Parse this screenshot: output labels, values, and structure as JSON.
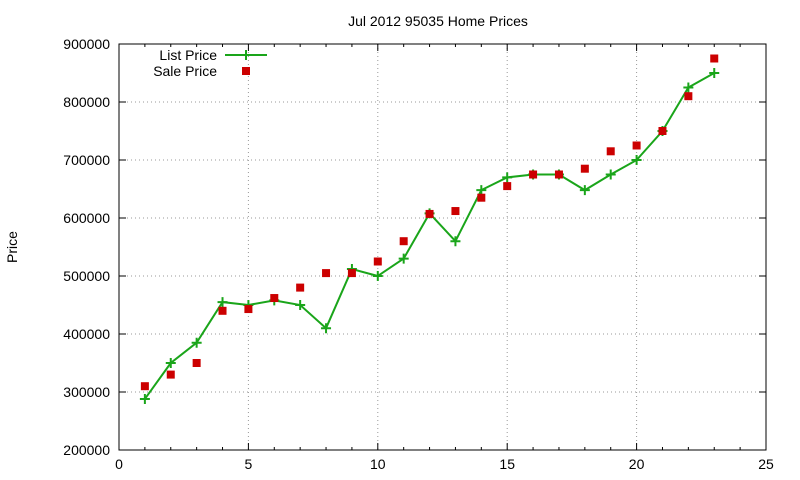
{
  "chart_data": {
    "type": "line",
    "title": "Jul 2012 95035 Home Prices",
    "xlabel": "",
    "ylabel": "Price",
    "xlim": [
      0,
      25
    ],
    "ylim": [
      200000,
      900000
    ],
    "x_ticks": [
      "0",
      "5",
      "10",
      "15",
      "20",
      "25"
    ],
    "y_ticks": [
      "200000",
      "300000",
      "400000",
      "500000",
      "600000",
      "700000",
      "800000",
      "900000"
    ],
    "grid": true,
    "legend_position": "top-left",
    "x": [
      1,
      2,
      3,
      4,
      5,
      6,
      7,
      8,
      9,
      10,
      11,
      12,
      13,
      14,
      15,
      16,
      17,
      18,
      19,
      20,
      21,
      22,
      23
    ],
    "series": [
      {
        "name": "List Price",
        "style": "line-plus",
        "color": "#1aa51a",
        "values": [
          288000,
          350000,
          385000,
          455000,
          450000,
          458000,
          450000,
          410000,
          512000,
          500000,
          530000,
          608000,
          560000,
          648000,
          670000,
          675000,
          675000,
          648000,
          675000,
          700000,
          750000,
          825000,
          850000
        ]
      },
      {
        "name": "Sale Price",
        "style": "square",
        "color": "#cc0000",
        "values": [
          310000,
          330000,
          350000,
          440000,
          443000,
          462000,
          480000,
          505000,
          505000,
          525000,
          560000,
          607000,
          612000,
          635000,
          655000,
          675000,
          675000,
          685000,
          715000,
          725000,
          750000,
          810000,
          875000
        ]
      }
    ]
  }
}
